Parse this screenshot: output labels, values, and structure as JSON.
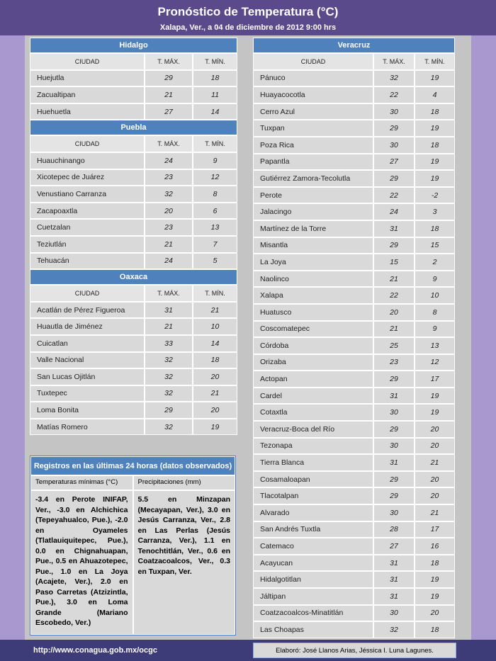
{
  "header": {
    "title": "Pronóstico de Temperatura (°C)",
    "subtitle": "Xalapa, Ver., a 04 de diciembre de 2012  9:00 hrs"
  },
  "columns": [
    "CIUDAD",
    "T. MÁX.",
    "T. MÍN."
  ],
  "tables": [
    {
      "name": "Hidalgo",
      "rows": [
        [
          "Huejutla",
          29,
          18
        ],
        [
          "Zacualtipan",
          21,
          11
        ],
        [
          "Huehuetla",
          27,
          14
        ]
      ]
    },
    {
      "name": "Puebla",
      "rows": [
        [
          "Huauchinango",
          24,
          9
        ],
        [
          "Xicotepec de Juárez",
          23,
          12
        ],
        [
          "Venustiano Carranza",
          32,
          8
        ],
        [
          "Zacapoaxtla",
          20,
          6
        ],
        [
          "Cuetzalan",
          23,
          13
        ],
        [
          "Teziutlán",
          21,
          7
        ],
        [
          "Tehuacán",
          24,
          5
        ]
      ]
    },
    {
      "name": "Oaxaca",
      "rows": [
        [
          "Acatlán de Pérez Figueroa",
          31,
          21
        ],
        [
          "Huautla de Jiménez",
          21,
          10
        ],
        [
          "Cuicatlan",
          33,
          14
        ],
        [
          "Valle Nacional",
          32,
          18
        ],
        [
          "San Lucas Ojitlán",
          32,
          20
        ],
        [
          "Tuxtepec",
          32,
          21
        ],
        [
          "Loma Bonita",
          29,
          20
        ],
        [
          "Matías Romero",
          32,
          19
        ]
      ]
    },
    {
      "name": "Veracruz",
      "rows": [
        [
          "Pánuco",
          32,
          19
        ],
        [
          "Huayacocotla",
          22,
          4
        ],
        [
          "Cerro Azul",
          30,
          18
        ],
        [
          "Tuxpan",
          29,
          19
        ],
        [
          "Poza Rica",
          30,
          18
        ],
        [
          "Papantla",
          27,
          19
        ],
        [
          "Gutiérrez Zamora-Tecolutla",
          29,
          19
        ],
        [
          "Perote",
          22,
          -2
        ],
        [
          "Jalacingo",
          24,
          3
        ],
        [
          "Martínez de la Torre",
          31,
          18
        ],
        [
          "Misantla",
          29,
          15
        ],
        [
          "La Joya",
          15,
          2
        ],
        [
          "Naolinco",
          21,
          9
        ],
        [
          "Xalapa",
          22,
          10
        ],
        [
          "Huatusco",
          20,
          8
        ],
        [
          "Coscomatepec",
          21,
          9
        ],
        [
          "Córdoba",
          25,
          13
        ],
        [
          "Orizaba",
          23,
          12
        ],
        [
          "Actopan",
          29,
          17
        ],
        [
          "Cardel",
          31,
          19
        ],
        [
          "Cotaxtla",
          30,
          19
        ],
        [
          "Veracruz-Boca del Río",
          29,
          20
        ],
        [
          "Tezonapa",
          30,
          20
        ],
        [
          "Tierra Blanca",
          31,
          21
        ],
        [
          "Cosamaloapan",
          29,
          20
        ],
        [
          "Tlacotalpan",
          29,
          20
        ],
        [
          "Alvarado",
          30,
          21
        ],
        [
          "San Andrés Tuxtla",
          28,
          17
        ],
        [
          "Catemaco",
          27,
          16
        ],
        [
          "Acayucan",
          31,
          18
        ],
        [
          "Hidalgotitlan",
          31,
          19
        ],
        [
          "Jáltipan",
          31,
          19
        ],
        [
          "Coatzacoalcos-Minatitlán",
          30,
          20
        ],
        [
          "Las Choapas",
          32,
          18
        ]
      ]
    }
  ],
  "observed": {
    "title": "Registros en las últimas 24 horas (datos observados)",
    "columns": [
      "Temperaturas mínimas (°C)",
      "Precipitaciones (mm)"
    ],
    "texts": [
      "-3.4 en Perote INIFAP, Ver., -3.0 en Alchichica (Tepeyahualco, Pue.), -2.0 en Oyameles (Tlatlauiquitepec, Pue.), 0.0 en Chignahuapan, Pue., 0.5 en Ahuazotepec, Pue., 1.0 en La Joya (Acajete, Ver.), 2.0 en Paso Carretas (Atzizintla, Pue.), 3.0 en Loma Grande (Mariano Escobedo, Ver.)",
      "5.5 en Minzapan (Mecayapan, Ver.), 3.0 en Jesús Carranza, Ver., 2.8 en Las Perlas (Jesús Carranza, Ver.), 1.1 en Tenochtitlán, Ver., 0.6 en Coatzacoalcos, Ver., 0.3 en Tuxpan, Ver."
    ]
  },
  "footer": {
    "url": "http://www.conagua.gob.mx/ocgc",
    "credit": "Elaboró: José Llanos Arias, Jéssica I. Luna Lagunes."
  }
}
